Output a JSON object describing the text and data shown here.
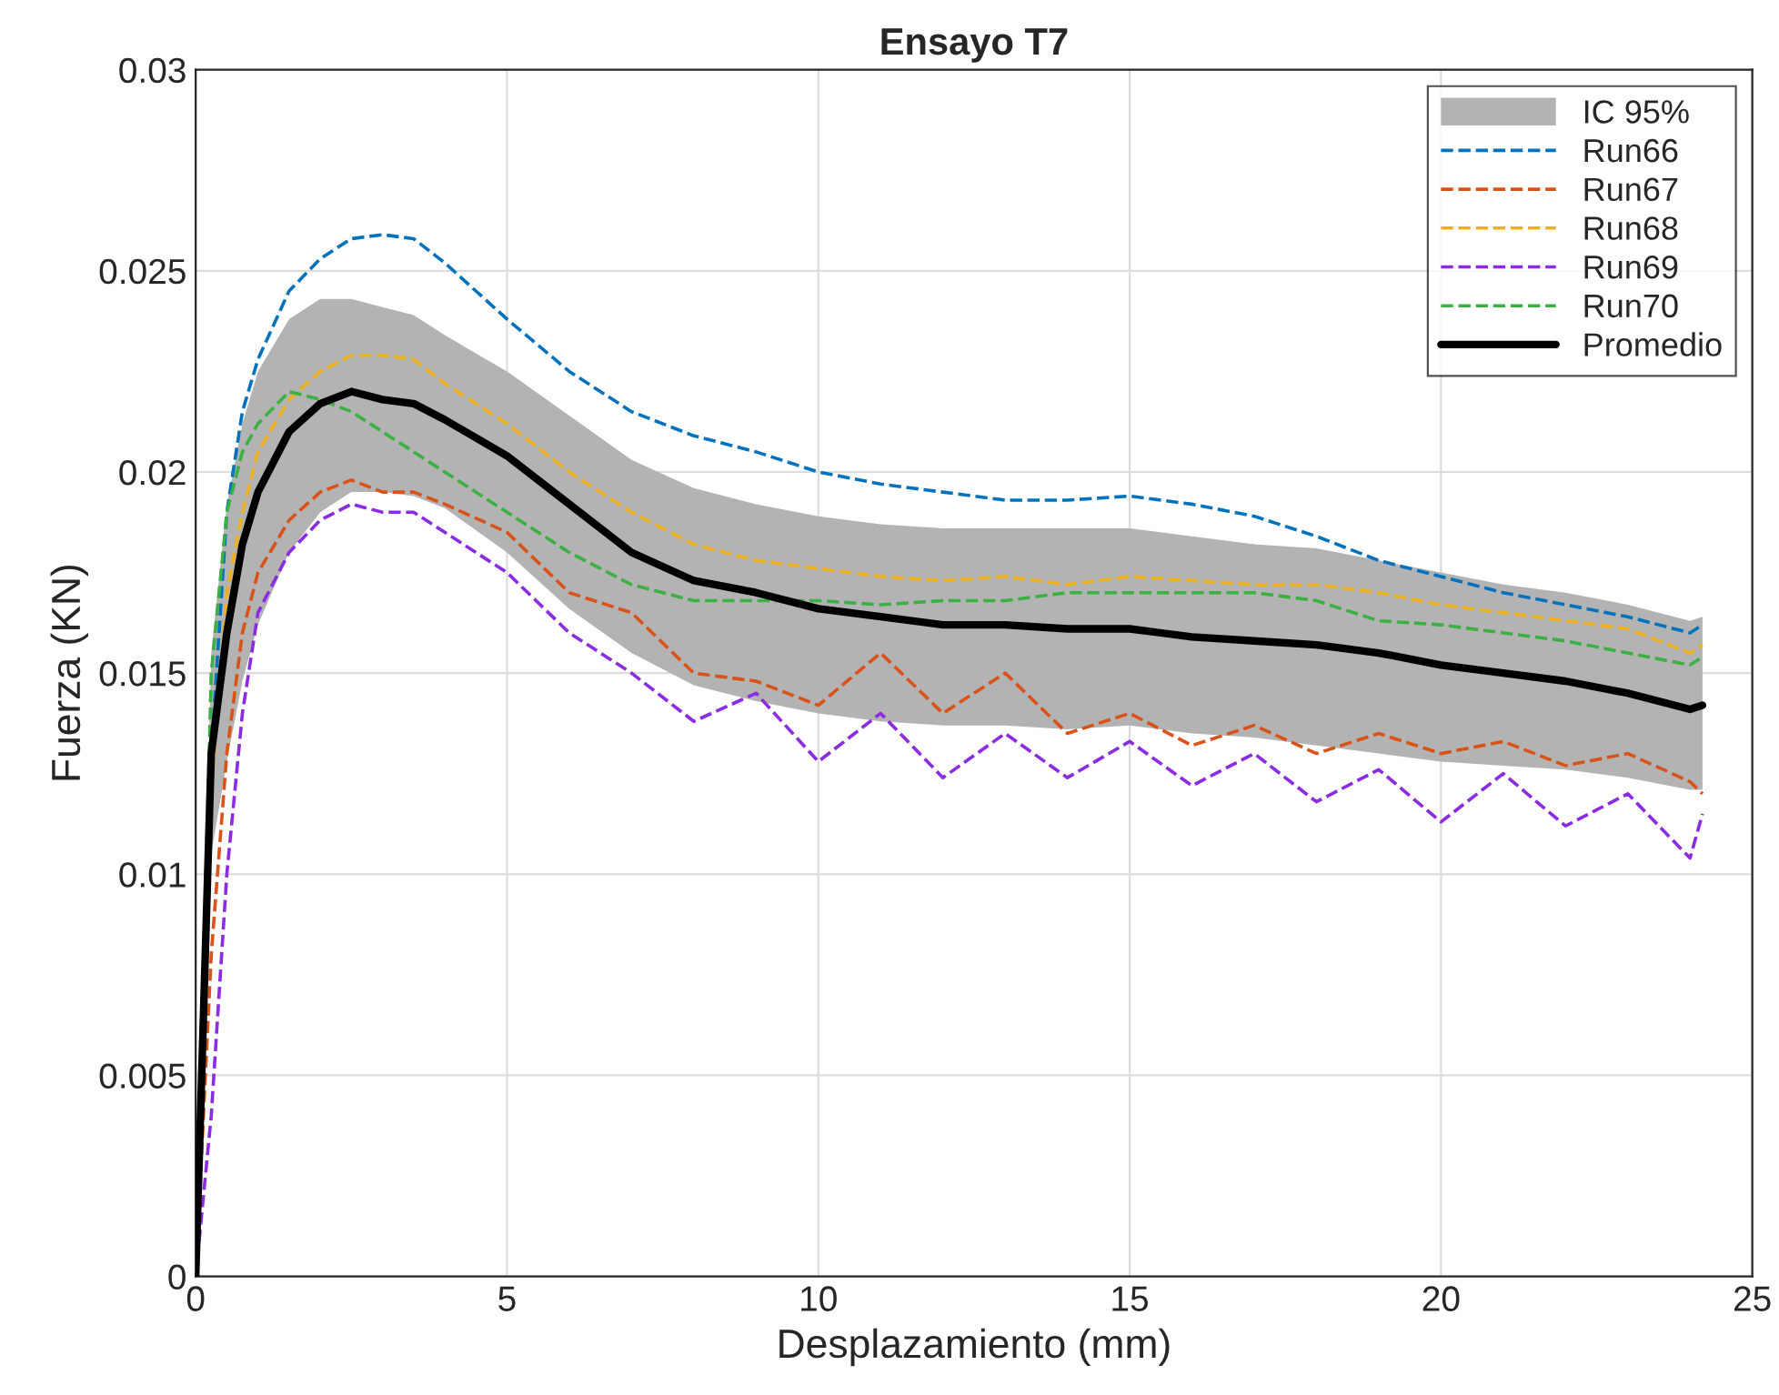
{
  "chart_data": {
    "type": "line",
    "title": "Ensayo T7",
    "xlabel": "Desplazamiento (mm)",
    "ylabel": "Fuerza (KN)",
    "annotations": [
      "IC 95%"
    ],
    "x": [
      0,
      0.25,
      0.5,
      0.75,
      1,
      1.5,
      2,
      2.5,
      3,
      3.5,
      4,
      5,
      6,
      7,
      8,
      9,
      10,
      11,
      12,
      13,
      14,
      15,
      16,
      17,
      18,
      19,
      20,
      21,
      22,
      23,
      24,
      24.2
    ],
    "xlim": [
      0,
      25
    ],
    "xticks": [
      0,
      5,
      10,
      15,
      20,
      25
    ],
    "ylim": [
      0,
      0.03
    ],
    "yticks": [
      0,
      0.005,
      0.01,
      0.015,
      0.02,
      0.025,
      0.03
    ],
    "grid": true,
    "legend": "top right",
    "series": [
      {
        "name": "Run66",
        "color": "#0072bd",
        "line_style": "dashed",
        "values": [
          0,
          0.013,
          0.019,
          0.0215,
          0.0228,
          0.0245,
          0.0253,
          0.0258,
          0.0259,
          0.0258,
          0.0252,
          0.0238,
          0.0225,
          0.0215,
          0.0209,
          0.0205,
          0.02,
          0.0197,
          0.0195,
          0.0193,
          0.0193,
          0.0194,
          0.0192,
          0.0189,
          0.0184,
          0.0178,
          0.0174,
          0.017,
          0.0167,
          0.0164,
          0.016,
          0.0162
        ]
      },
      {
        "name": "Run67",
        "color": "#d95319",
        "line_style": "dashed",
        "values": [
          0,
          0.008,
          0.013,
          0.016,
          0.0175,
          0.0188,
          0.0195,
          0.0198,
          0.0195,
          0.0195,
          0.0192,
          0.0185,
          0.017,
          0.0165,
          0.015,
          0.0148,
          0.0142,
          0.0155,
          0.014,
          0.015,
          0.0135,
          0.014,
          0.0132,
          0.0137,
          0.013,
          0.0135,
          0.013,
          0.0133,
          0.0127,
          0.013,
          0.0123,
          0.012
        ]
      },
      {
        "name": "Run68",
        "color": "#edb120",
        "line_style": "dashed",
        "values": [
          0,
          0.012,
          0.017,
          0.019,
          0.0205,
          0.0218,
          0.0225,
          0.0229,
          0.0229,
          0.0228,
          0.0222,
          0.0212,
          0.02,
          0.019,
          0.0182,
          0.0178,
          0.0176,
          0.0174,
          0.0173,
          0.0174,
          0.0172,
          0.0174,
          0.0173,
          0.0172,
          0.0172,
          0.017,
          0.0167,
          0.0165,
          0.0163,
          0.0161,
          0.0155,
          0.0157
        ]
      },
      {
        "name": "Run69",
        "color": "#8b2be2",
        "line_style": "dashed",
        "values": [
          0,
          0.004,
          0.01,
          0.014,
          0.0165,
          0.018,
          0.0188,
          0.0192,
          0.019,
          0.019,
          0.0185,
          0.0175,
          0.016,
          0.015,
          0.0138,
          0.0145,
          0.0128,
          0.014,
          0.0124,
          0.0135,
          0.0124,
          0.0133,
          0.0122,
          0.013,
          0.0118,
          0.0126,
          0.0113,
          0.0125,
          0.0112,
          0.012,
          0.0104,
          0.0115
        ]
      },
      {
        "name": "Run70",
        "color": "#3cb043",
        "line_style": "dashed",
        "values": [
          0,
          0.015,
          0.019,
          0.0205,
          0.0212,
          0.022,
          0.0218,
          0.0215,
          0.021,
          0.0205,
          0.02,
          0.019,
          0.018,
          0.0172,
          0.0168,
          0.0168,
          0.0168,
          0.0167,
          0.0168,
          0.0168,
          0.017,
          0.017,
          0.017,
          0.017,
          0.0168,
          0.0163,
          0.0162,
          0.016,
          0.0158,
          0.0155,
          0.0152,
          0.0154
        ]
      },
      {
        "name": "Promedio",
        "color": "#000000",
        "line_style": "solid",
        "values": [
          0,
          0.013,
          0.016,
          0.0182,
          0.0195,
          0.021,
          0.0217,
          0.022,
          0.0218,
          0.0217,
          0.0213,
          0.0204,
          0.0192,
          0.018,
          0.0173,
          0.017,
          0.0166,
          0.0164,
          0.0162,
          0.0162,
          0.0161,
          0.0161,
          0.0159,
          0.0158,
          0.0157,
          0.0155,
          0.0152,
          0.015,
          0.0148,
          0.0145,
          0.0141,
          0.0142
        ],
        "lower": [
          0,
          0.0105,
          0.0128,
          0.0148,
          0.0162,
          0.018,
          0.019,
          0.0195,
          0.0195,
          0.0194,
          0.0191,
          0.018,
          0.0166,
          0.0155,
          0.0147,
          0.0143,
          0.014,
          0.0138,
          0.0137,
          0.0137,
          0.0136,
          0.0137,
          0.0135,
          0.0134,
          0.0132,
          0.013,
          0.0128,
          0.0127,
          0.0126,
          0.0124,
          0.0121,
          0.0121
        ],
        "upper": [
          0,
          0.0155,
          0.0192,
          0.0212,
          0.0225,
          0.0238,
          0.0243,
          0.0243,
          0.0241,
          0.0239,
          0.0234,
          0.0225,
          0.0214,
          0.0203,
          0.0196,
          0.0192,
          0.0189,
          0.0187,
          0.0186,
          0.0186,
          0.0186,
          0.0186,
          0.0184,
          0.0182,
          0.0181,
          0.0178,
          0.0175,
          0.0172,
          0.017,
          0.0167,
          0.0163,
          0.0164
        ]
      }
    ]
  }
}
